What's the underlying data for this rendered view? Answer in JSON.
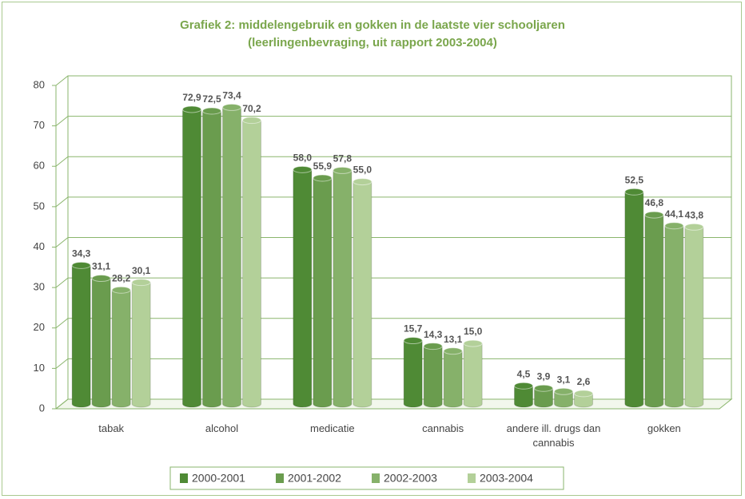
{
  "chart_data": {
    "type": "bar",
    "title": "Grafiek 2: middelengebruik en gokken in de laatste vier schooljaren",
    "subtitle": "(leerlingenbevraging, uit rapport 2003-2004)",
    "categories": [
      "tabak",
      "alcohol",
      "medicatie",
      "cannabis",
      "andere ill. drugs dan cannabis",
      "gokken"
    ],
    "series": [
      {
        "name": "2000-2001",
        "color": "#4f8a35",
        "values": [
          34.3,
          72.9,
          58.0,
          15.7,
          4.5,
          52.5
        ],
        "value_labels": [
          "34,3",
          "72,9",
          "58,0",
          "15,7",
          "4,5",
          "52,5"
        ]
      },
      {
        "name": "2001-2002",
        "color": "#6a9c4e",
        "values": [
          31.1,
          72.5,
          55.9,
          14.3,
          3.9,
          46.8
        ],
        "value_labels": [
          "31,1",
          "72,5",
          "55,9",
          "14,3",
          "3,9",
          "46,8"
        ]
      },
      {
        "name": "2002-2003",
        "color": "#86b16a",
        "values": [
          28.2,
          73.4,
          57.8,
          13.1,
          3.1,
          44.1
        ],
        "value_labels": [
          "28,2",
          "73,4",
          "57,8",
          "13,1",
          "3,1",
          "44,1"
        ]
      },
      {
        "name": "2003-2004",
        "color": "#b3d099",
        "values": [
          30.1,
          70.2,
          55.0,
          15.0,
          2.6,
          43.8
        ],
        "value_labels": [
          "30,1",
          "70,2",
          "55,0",
          "15,0",
          "2,6",
          "43,8"
        ]
      }
    ],
    "ylim": [
      0,
      80
    ],
    "yticks": [
      0,
      10,
      20,
      30,
      40,
      50,
      60,
      70,
      80
    ],
    "grid": true,
    "legend": "bottom"
  }
}
